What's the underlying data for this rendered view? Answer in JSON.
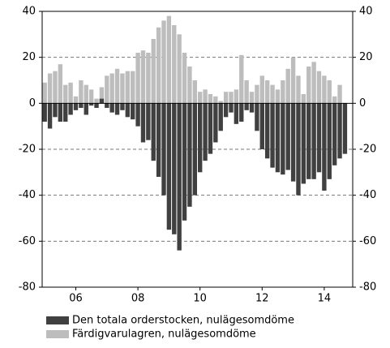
{
  "chart_data": {
    "type": "bar",
    "categories": [
      null,
      null,
      null,
      null,
      null,
      null,
      "06",
      null,
      null,
      null,
      null,
      null,
      null,
      null,
      null,
      null,
      null,
      null,
      "08",
      null,
      null,
      null,
      null,
      null,
      null,
      null,
      null,
      null,
      null,
      null,
      "10",
      null,
      null,
      null,
      null,
      null,
      null,
      null,
      null,
      null,
      null,
      null,
      "12",
      null,
      null,
      null,
      null,
      null,
      null,
      null,
      null,
      null,
      null,
      null,
      "14",
      null,
      null,
      null,
      null,
      null
    ],
    "series": [
      {
        "name": "Färdigvarulagren, nulägesomdöme",
        "color": "#bdbdbd",
        "values": [
          9,
          13,
          14,
          17,
          8,
          9,
          3,
          10,
          8,
          6,
          2,
          7,
          12,
          13,
          15,
          13,
          14,
          14,
          22,
          23,
          22,
          28,
          33,
          36,
          38,
          34,
          30,
          22,
          16,
          10,
          5,
          6,
          4,
          3,
          1,
          5,
          5,
          6,
          21,
          10,
          5,
          8,
          12,
          10,
          8,
          6,
          10,
          15,
          20,
          12,
          4,
          16,
          18,
          14,
          12,
          10,
          3,
          8,
          null,
          null
        ]
      },
      {
        "name": "Den totala orderstocken, nulägesomdöme",
        "color": "#404040",
        "values": [
          -8,
          -11,
          -6,
          -8,
          -8,
          -5,
          -3,
          -2,
          -5,
          -1,
          -2,
          2,
          -2,
          -4,
          -5,
          -3,
          -6,
          -7,
          -10,
          -17,
          -16,
          -25,
          -32,
          -40,
          -55,
          -57,
          -64,
          -51,
          -45,
          -40,
          -30,
          -25,
          -22,
          -17,
          -12,
          -6,
          -4,
          -9,
          -8,
          -3,
          -4,
          -12,
          -20,
          -24,
          -28,
          -30,
          -31,
          -29,
          -34,
          -40,
          -35,
          -33,
          -33,
          -30,
          -38,
          -33,
          -27,
          -24,
          -22,
          null
        ]
      }
    ],
    "ylim": [
      -80,
      40
    ],
    "yticks": [
      -80,
      -60,
      -40,
      -20,
      0,
      20,
      40
    ],
    "grid": true
  }
}
